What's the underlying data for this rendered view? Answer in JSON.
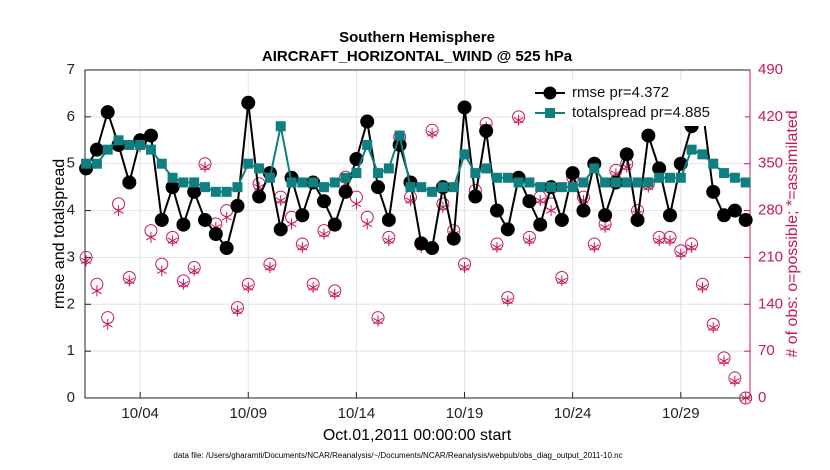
{
  "chart_data": {
    "type": "line",
    "title": "Southern Hemisphere",
    "subtitle": "AIRCRAFT_HORIZONTAL_WIND @ 525 hPa",
    "xlabel": "Oct.01,2011 00:00:00 start",
    "ylabel": "rmse and totalspread",
    "y2label": "# of obs: o=possible; *=assimilated",
    "footnote": "data file: /Users/gharamti/Documents/NCAR/Reanalysis/~/Documents/NCAR/Reanalysis/webpub/obs_diag_output_2011-10.nc",
    "x": [
      1.5,
      2,
      2.5,
      3,
      3.5,
      4,
      4.5,
      5,
      5.5,
      6,
      6.5,
      7,
      7.5,
      8,
      8.5,
      9,
      9.5,
      10,
      10.5,
      11,
      11.5,
      12,
      12.5,
      13,
      13.5,
      14,
      14.5,
      15,
      15.5,
      16,
      16.5,
      17,
      17.5,
      18,
      18.5,
      19,
      19.5,
      20,
      20.5,
      21,
      21.5,
      22,
      22.5,
      23,
      23.5,
      24,
      24.5,
      25,
      25.5,
      26,
      26.5,
      27,
      27.5,
      28,
      28.5,
      29,
      29.5,
      30,
      30.5,
      31,
      31.5,
      32
    ],
    "xlim": [
      1.45,
      32.2
    ],
    "xticks": [
      {
        "value": 4,
        "label": "10/04"
      },
      {
        "value": 9,
        "label": "10/09"
      },
      {
        "value": 14,
        "label": "10/14"
      },
      {
        "value": 19,
        "label": "10/19"
      },
      {
        "value": 24,
        "label": "10/24"
      },
      {
        "value": 29,
        "label": "10/29"
      }
    ],
    "ylim": [
      0,
      7
    ],
    "yticks": [
      0,
      1,
      2,
      3,
      4,
      5,
      6,
      7
    ],
    "y2lim": [
      0,
      490
    ],
    "y2ticks": [
      0,
      70,
      140,
      210,
      280,
      350,
      420,
      490
    ],
    "grid": true,
    "legend": "upper right",
    "series": [
      {
        "name": "rmse pr=4.372",
        "color": "#000000",
        "marker": "circle",
        "values": [
          4.9,
          5.3,
          6.1,
          5.4,
          4.6,
          5.5,
          5.6,
          3.8,
          4.5,
          3.7,
          4.4,
          3.8,
          3.5,
          3.2,
          4.1,
          6.3,
          4.3,
          4.8,
          3.6,
          4.7,
          3.9,
          4.6,
          4.2,
          3.7,
          4.4,
          5.1,
          5.9,
          4.5,
          3.8,
          5.4,
          4.6,
          3.3,
          3.2,
          4.5,
          3.4,
          6.2,
          4.3,
          5.7,
          4.0,
          3.6,
          4.7,
          4.2,
          3.7,
          4.5,
          3.8,
          4.8,
          4.0,
          5.0,
          3.9,
          4.6,
          5.2,
          3.8,
          5.6,
          4.9,
          3.9,
          5.0,
          5.8,
          6.2,
          4.4,
          3.9,
          4.0,
          3.8
        ]
      },
      {
        "name": "totalspread pr=4.885",
        "color": "#0f7f7f",
        "marker": "square",
        "values": [
          5.0,
          5.0,
          5.3,
          5.5,
          5.4,
          5.4,
          5.3,
          5.0,
          4.7,
          4.6,
          4.6,
          4.5,
          4.4,
          4.4,
          4.5,
          5.0,
          4.9,
          4.7,
          5.8,
          4.6,
          4.6,
          4.6,
          4.5,
          4.6,
          4.7,
          4.8,
          5.4,
          4.8,
          4.9,
          5.6,
          4.5,
          4.5,
          4.4,
          4.5,
          4.5,
          5.2,
          4.8,
          4.9,
          4.7,
          4.7,
          4.6,
          4.6,
          4.5,
          4.5,
          4.5,
          4.5,
          4.6,
          4.9,
          4.6,
          4.6,
          4.6,
          4.6,
          4.6,
          4.7,
          4.7,
          4.7,
          5.3,
          5.2,
          5.0,
          4.8,
          4.7,
          4.6
        ]
      },
      {
        "color": "#c8175d",
        "marker": "open-circle",
        "axis": "y2",
        "values": [
          210,
          170,
          120,
          290,
          180,
          380,
          250,
          200,
          240,
          175,
          195,
          350,
          260,
          280,
          135,
          170,
          320,
          200,
          300,
          270,
          230,
          170,
          250,
          160,
          330,
          300,
          270,
          120,
          240,
          390,
          300,
          230,
          400,
          290,
          250,
          200,
          310,
          410,
          230,
          150,
          420,
          240,
          300,
          290,
          180,
          330,
          300,
          230,
          260,
          340,
          350,
          280,
          320,
          240,
          240,
          220,
          230,
          170,
          110,
          60,
          30,
          0
        ]
      },
      {
        "color": "#c8175d",
        "marker": "asterisk",
        "axis": "y2",
        "values": [
          205,
          160,
          110,
          280,
          175,
          375,
          240,
          190,
          235,
          170,
          190,
          345,
          255,
          270,
          130,
          165,
          315,
          195,
          295,
          260,
          225,
          165,
          245,
          155,
          320,
          290,
          260,
          115,
          235,
          385,
          295,
          225,
          395,
          285,
          245,
          195,
          305,
          405,
          225,
          145,
          415,
          235,
          295,
          280,
          175,
          325,
          295,
          225,
          255,
          335,
          345,
          275,
          315,
          235,
          235,
          215,
          225,
          165,
          105,
          55,
          25,
          0
        ]
      }
    ]
  }
}
